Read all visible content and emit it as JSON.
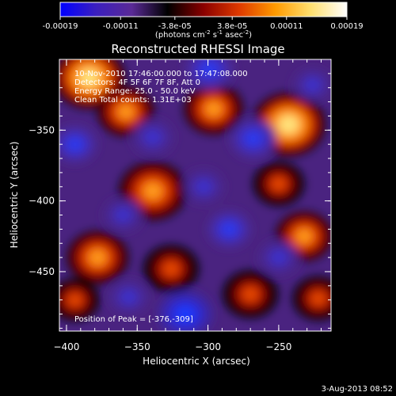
{
  "colorbar": {
    "ticks": [
      "-0.00019",
      "-0.00011",
      "-3.8e-05",
      "3.8e-05",
      "0.00011",
      "0.00019"
    ],
    "units_main": "(photons cm",
    "units_exp1": "-2",
    "units_mid": " s",
    "units_exp2": "-1",
    "units_tail": " asec",
    "units_exp3": "-2",
    "units_close": ")",
    "colors": [
      "#0000ff",
      "#3b1fbf",
      "#5a2a96",
      "#000000",
      "#8a0000",
      "#e03a00",
      "#ff9a00",
      "#ffe070",
      "#ffffff"
    ]
  },
  "chart_data": {
    "type": "heatmap",
    "title": "Reconstructed RHESSI Image",
    "xlabel": "Heliocentric X (arcsec)",
    "ylabel": "Heliocentric Y (arcsec)",
    "xlim": [
      -405,
      -213
    ],
    "ylim": [
      -492,
      -300
    ],
    "xticks": [
      -400,
      -350,
      -300,
      -250
    ],
    "yticks": [
      -350,
      -400,
      -450
    ],
    "value_range": [
      -0.00019,
      0.00019
    ],
    "peak": [
      -376,
      -309
    ],
    "info_lines": [
      "10-Nov-2010 17:46:00.000 to 17:47:08.000",
      "Detectors: 4F 5F 6F 7F 8F, Att 0",
      "Energy Range: 25.0 - 50.0 keV",
      "Clean    Total counts: 1.31E+03"
    ],
    "peak_label": "Position of Peak = [-376,-309]",
    "blobs": [
      {
        "x": -243,
        "y": -346,
        "v": 1.0
      },
      {
        "x": -384,
        "y": -313,
        "v": 0.95
      },
      {
        "x": -339,
        "y": -393,
        "v": 0.85
      },
      {
        "x": -378,
        "y": -440,
        "v": 0.7
      },
      {
        "x": -326,
        "y": -448,
        "v": 0.55
      },
      {
        "x": -296,
        "y": -335,
        "v": 0.65
      },
      {
        "x": -232,
        "y": -425,
        "v": 0.6
      },
      {
        "x": -270,
        "y": -466,
        "v": 0.55
      },
      {
        "x": -358,
        "y": -337,
        "v": 0.6
      },
      {
        "x": -250,
        "y": -388,
        "v": 0.45
      },
      {
        "x": -222,
        "y": -469,
        "v": 0.45
      },
      {
        "x": -394,
        "y": -470,
        "v": 0.4
      },
      {
        "x": -299,
        "y": -307,
        "v": -0.75
      },
      {
        "x": -268,
        "y": -356,
        "v": -0.7
      },
      {
        "x": -316,
        "y": -480,
        "v": -0.95
      },
      {
        "x": -394,
        "y": -360,
        "v": -0.6
      },
      {
        "x": -285,
        "y": -420,
        "v": -0.6
      },
      {
        "x": -339,
        "y": -355,
        "v": -0.55
      },
      {
        "x": -356,
        "y": -468,
        "v": -0.5
      },
      {
        "x": -226,
        "y": -318,
        "v": -0.45
      },
      {
        "x": -303,
        "y": -390,
        "v": -0.5
      },
      {
        "x": -360,
        "y": -410,
        "v": -0.45
      },
      {
        "x": -250,
        "y": -440,
        "v": -0.5
      }
    ]
  },
  "footer": {
    "date": "3-Aug-2013 08:52"
  }
}
